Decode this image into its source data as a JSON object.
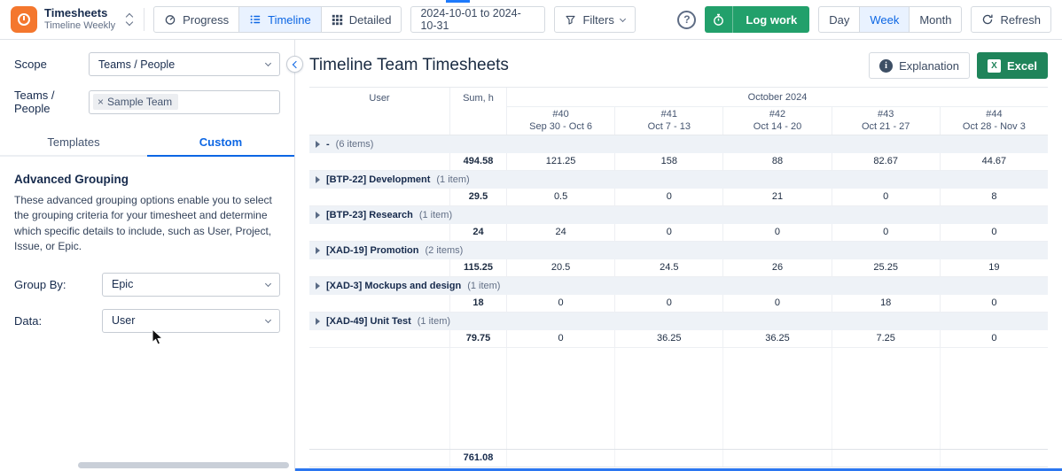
{
  "icons": {
    "help": "?",
    "info": "i",
    "excel": "X",
    "close": "×"
  },
  "colors": {
    "accent_blue": "#0c66e4",
    "accent_blue_bg": "#e9f2ff",
    "log_work_green": "#22a06b",
    "excel_green": "#1f845a",
    "logo_orange": "#f4772e",
    "group_row_bg": "#eef2f7"
  },
  "topbar": {
    "app": {
      "title": "Timesheets",
      "subtitle": "Timeline Weekly"
    },
    "view_tabs": [
      {
        "label": "Progress"
      },
      {
        "label": "Timeline"
      },
      {
        "label": "Detailed"
      }
    ],
    "active_view_tab": "Timeline",
    "date_range": "2024-10-01 to 2024-10-31",
    "filters_label": "Filters",
    "log_work_label": "Log work",
    "period_tabs": [
      {
        "label": "Day"
      },
      {
        "label": "Week"
      },
      {
        "label": "Month"
      }
    ],
    "active_period_tab": "Week",
    "refresh_label": "Refresh"
  },
  "sidebar": {
    "scope_label": "Scope",
    "scope_value": "Teams / People",
    "teams_label": "Teams / People",
    "team_tag": "Sample Team",
    "tabs": [
      {
        "label": "Templates"
      },
      {
        "label": "Custom"
      }
    ],
    "active_tab": "Custom",
    "heading": "Advanced Grouping",
    "description": "These advanced grouping options enable you to select the grouping criteria for your timesheet and determine which specific details to include, such as User, Project, Issue, or Epic.",
    "group_by_label": "Group By:",
    "group_by_value": "Epic",
    "data_label": "Data:",
    "data_value": "User"
  },
  "main": {
    "title": "Timeline Team Timesheets",
    "explanation_label": "Explanation",
    "excel_label": "Excel",
    "table": {
      "user_header": "User",
      "sum_header": "Sum, h",
      "month_header": "October 2024",
      "weeks": [
        {
          "num": "#40",
          "range": "Sep 30 - Oct 6"
        },
        {
          "num": "#41",
          "range": "Oct 7 - 13"
        },
        {
          "num": "#42",
          "range": "Oct 14 - 20"
        },
        {
          "num": "#43",
          "range": "Oct 21 - 27"
        },
        {
          "num": "#44",
          "range": "Oct 28 - Nov 3"
        }
      ],
      "groups": [
        {
          "label": "-",
          "count": "(6 items)",
          "sum": "494.58",
          "values": [
            "121.25",
            "158",
            "88",
            "82.67",
            "44.67"
          ]
        },
        {
          "label": "[BTP-22] Development",
          "count": "(1 item)",
          "sum": "29.5",
          "values": [
            "0.5",
            "0",
            "21",
            "0",
            "8"
          ]
        },
        {
          "label": "[BTP-23] Research",
          "count": "(1 item)",
          "sum": "24",
          "values": [
            "24",
            "0",
            "0",
            "0",
            "0"
          ]
        },
        {
          "label": "[XAD-19] Promotion",
          "count": "(2 items)",
          "sum": "115.25",
          "values": [
            "20.5",
            "24.5",
            "26",
            "25.25",
            "19"
          ]
        },
        {
          "label": "[XAD-3] Mockups and design",
          "count": "(1 item)",
          "sum": "18",
          "values": [
            "0",
            "0",
            "0",
            "18",
            "0"
          ]
        },
        {
          "label": "[XAD-49] Unit Test",
          "count": "(1 item)",
          "sum": "79.75",
          "values": [
            "0",
            "36.25",
            "36.25",
            "7.25",
            "0"
          ]
        }
      ],
      "total": "761.08"
    }
  }
}
